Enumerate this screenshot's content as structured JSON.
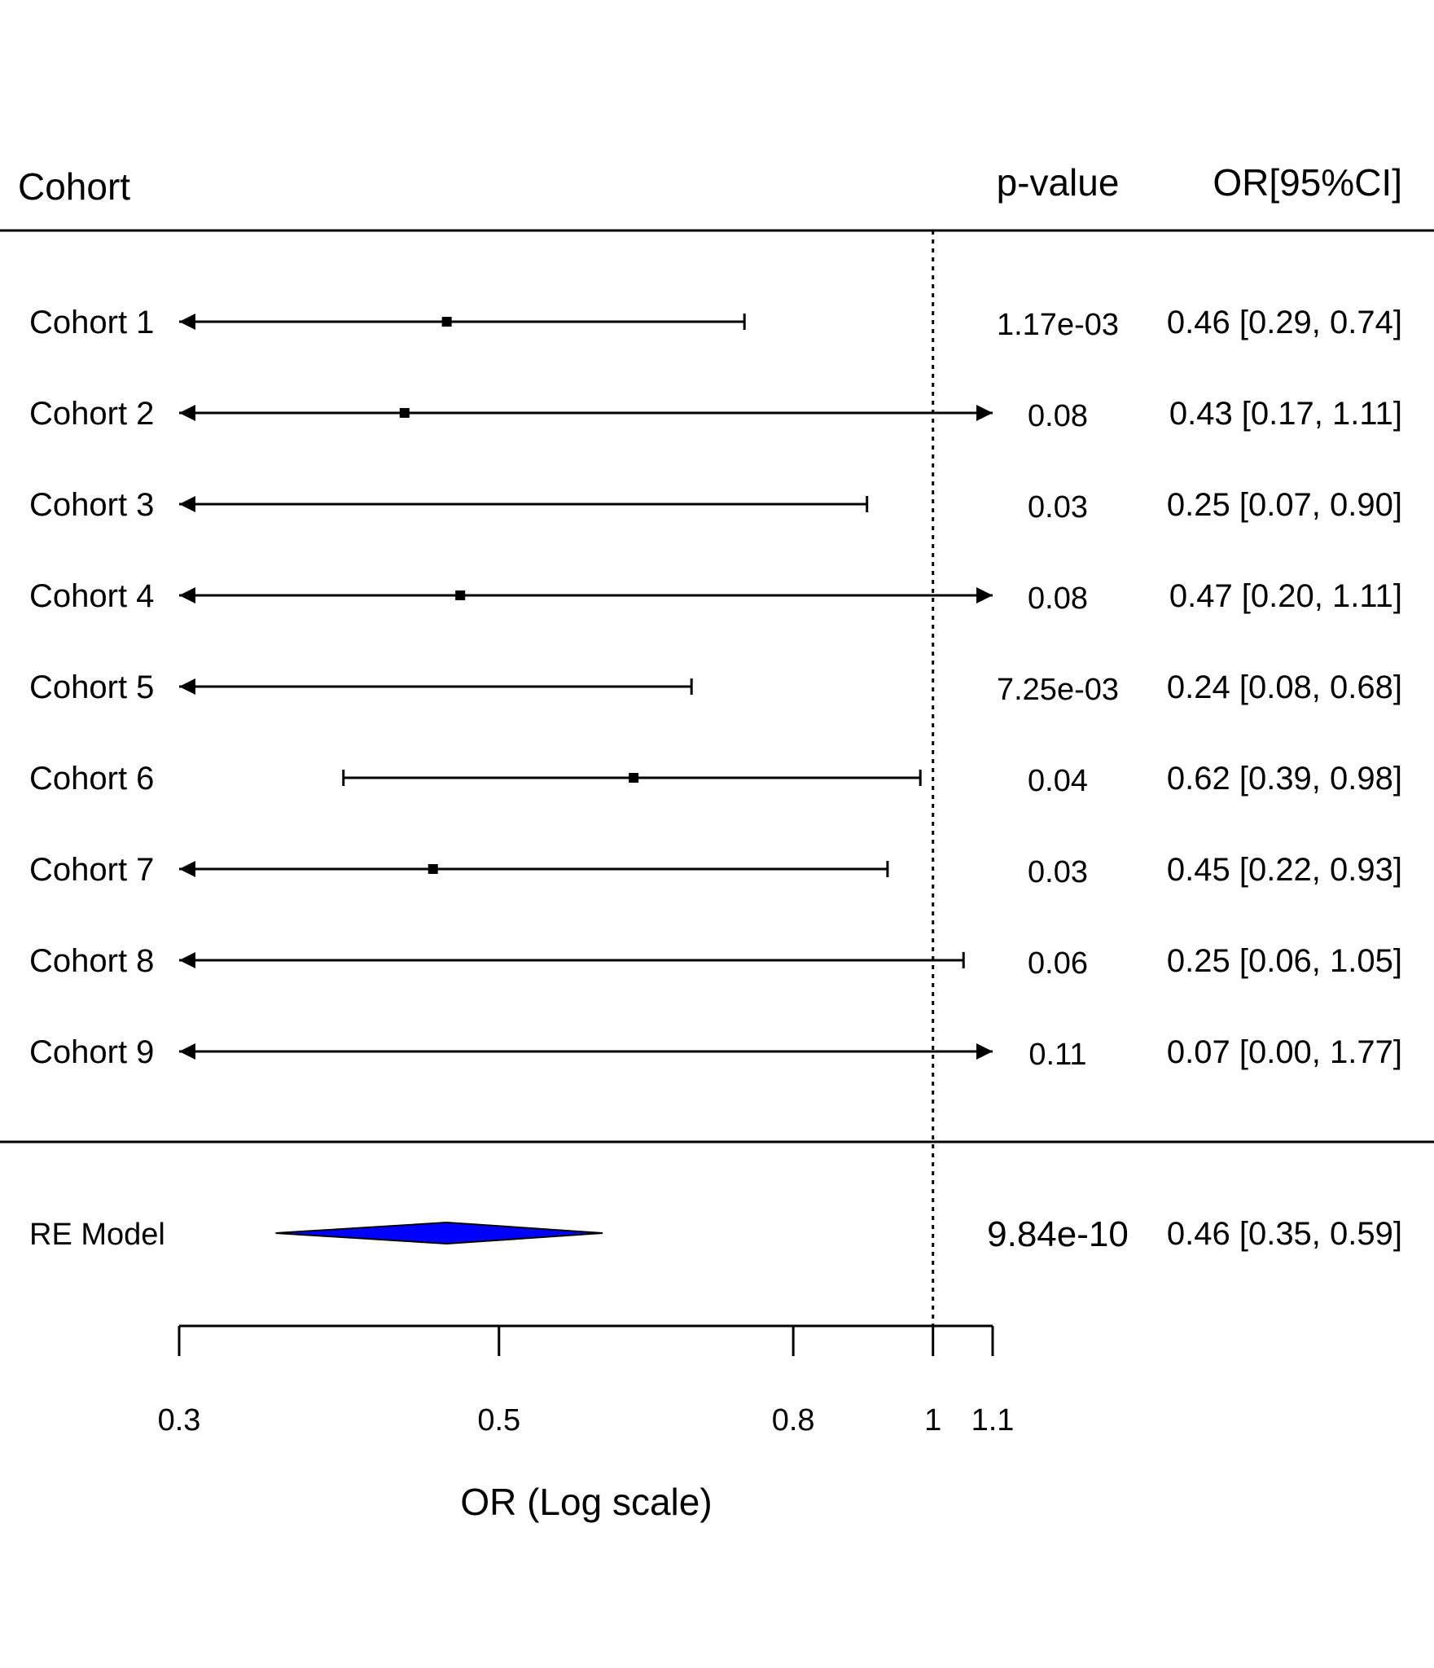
{
  "chart_data": {
    "type": "forest",
    "headers": {
      "study": "Cohort",
      "pvalue": "p-value",
      "estimate": "OR[95%CI]"
    },
    "studies": [
      {
        "label": "Cohort 1",
        "or": 0.46,
        "lower": 0.29,
        "upper": 0.74,
        "pvalue": "1.17e-03",
        "ci_text": "0.46 [0.29, 0.74]"
      },
      {
        "label": "Cohort 2",
        "or": 0.43,
        "lower": 0.17,
        "upper": 1.11,
        "pvalue": "0.08",
        "ci_text": "0.43 [0.17, 1.11]"
      },
      {
        "label": "Cohort 3",
        "or": 0.25,
        "lower": 0.07,
        "upper": 0.9,
        "pvalue": "0.03",
        "ci_text": "0.25 [0.07, 0.90]"
      },
      {
        "label": "Cohort 4",
        "or": 0.47,
        "lower": 0.2,
        "upper": 1.11,
        "pvalue": "0.08",
        "ci_text": "0.47 [0.20, 1.11]"
      },
      {
        "label": "Cohort 5",
        "or": 0.24,
        "lower": 0.08,
        "upper": 0.68,
        "pvalue": "7.25e-03",
        "ci_text": "0.24 [0.08, 0.68]"
      },
      {
        "label": "Cohort 6",
        "or": 0.62,
        "lower": 0.39,
        "upper": 0.98,
        "pvalue": "0.04",
        "ci_text": "0.62 [0.39, 0.98]"
      },
      {
        "label": "Cohort 7",
        "or": 0.45,
        "lower": 0.22,
        "upper": 0.93,
        "pvalue": "0.03",
        "ci_text": "0.45 [0.22, 0.93]"
      },
      {
        "label": "Cohort 8",
        "or": 0.25,
        "lower": 0.06,
        "upper": 1.05,
        "pvalue": "0.06",
        "ci_text": "0.25 [0.06, 1.05]"
      },
      {
        "label": "Cohort 9",
        "or": 0.07,
        "lower": 0.0,
        "upper": 1.77,
        "pvalue": "0.11",
        "ci_text": "0.07 [0.00, 1.77]"
      }
    ],
    "summary": {
      "label": "RE Model",
      "or": 0.46,
      "lower": 0.35,
      "upper": 0.59,
      "pvalue": "9.84e-10",
      "ci_text": "0.46 [0.35, 0.59]",
      "color": "#0000ff"
    },
    "x_axis": {
      "label": "OR (Log scale)",
      "scale": "log",
      "range": [
        0.3,
        1.1
      ],
      "ticks": [
        0.3,
        0.5,
        0.8,
        1,
        1.1
      ],
      "tick_labels": [
        "0.3",
        "0.5",
        "0.8",
        "1",
        "1.1"
      ]
    },
    "reference_line": 1
  }
}
